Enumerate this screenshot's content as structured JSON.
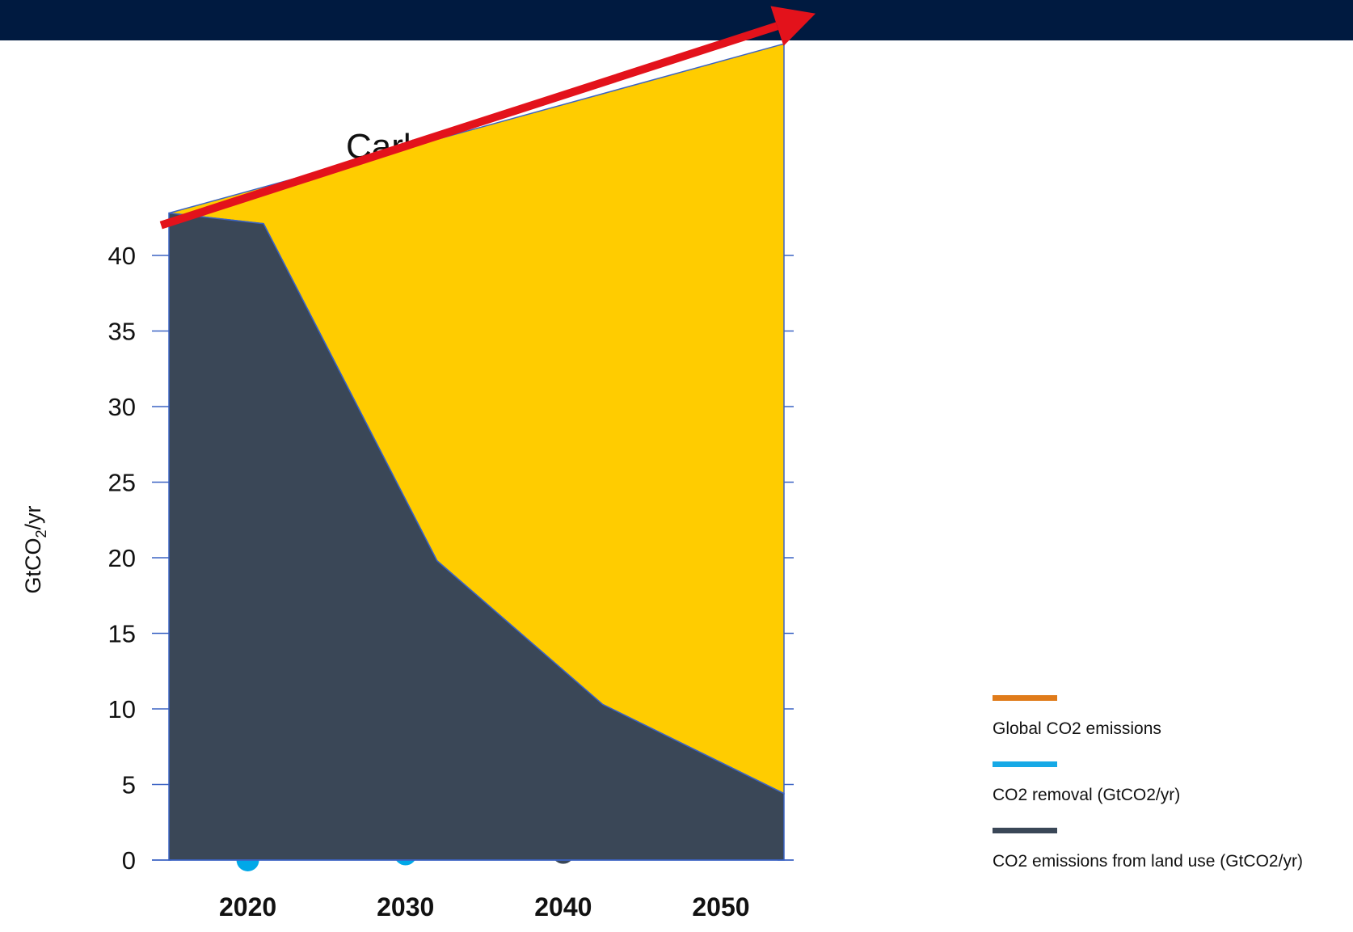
{
  "colors": {
    "header_bar": "#001a40",
    "arrow": "#e3121b",
    "area_fill": "#ffcc00",
    "axis": "#3b63c4"
  },
  "chart_data": {
    "type": "area",
    "title": "Carb",
    "ylabel": "GtCO₂/yr",
    "ylabel_main": "GtCO",
    "ylabel_sub": "2",
    "ylabel_tail": "/yr",
    "ylim": [
      0,
      43
    ],
    "yticks": [
      0,
      5,
      10,
      15,
      20,
      25,
      30,
      35,
      40
    ],
    "xlim": [
      2015,
      2054
    ],
    "xticks": [
      {
        "label": "2020",
        "x": 2020
      },
      {
        "label": "2030",
        "x": 2030
      },
      {
        "label": "2040",
        "x": 2040
      },
      {
        "label": "2050",
        "x": 2050
      }
    ],
    "series": [
      {
        "name": "CO2 emissions from land use (GtCO2/yr)",
        "color": "#3a4757",
        "x": [
          2015,
          2021,
          2032,
          2042.5,
          2054
        ],
        "values": [
          42.8,
          42.1,
          19.8,
          10.3,
          4.4
        ]
      }
    ],
    "upper_area": {
      "x": [
        2015,
        2054
      ],
      "values": [
        42.8,
        54
      ]
    },
    "arrow": {
      "x": [
        2014.5,
        2056
      ],
      "values": [
        42,
        56
      ]
    },
    "markers": [
      {
        "x": 2020,
        "y": 0,
        "color": "#00a8e8"
      },
      {
        "x": 2030,
        "y": 0.4,
        "color": "#00a8e8"
      },
      {
        "x": 2040,
        "y": 0.5,
        "color": "#3a4757"
      }
    ],
    "legend": [
      {
        "label": "Global CO2 emissions",
        "color": "#e07b1a"
      },
      {
        "label": "CO2 removal (GtCO2/yr)",
        "color": "#16a9e6"
      },
      {
        "label": "CO2 emissions from land use (GtCO2/yr)",
        "color": "#3a4757"
      }
    ],
    "grid": false,
    "legend_position": "bottom-right"
  }
}
